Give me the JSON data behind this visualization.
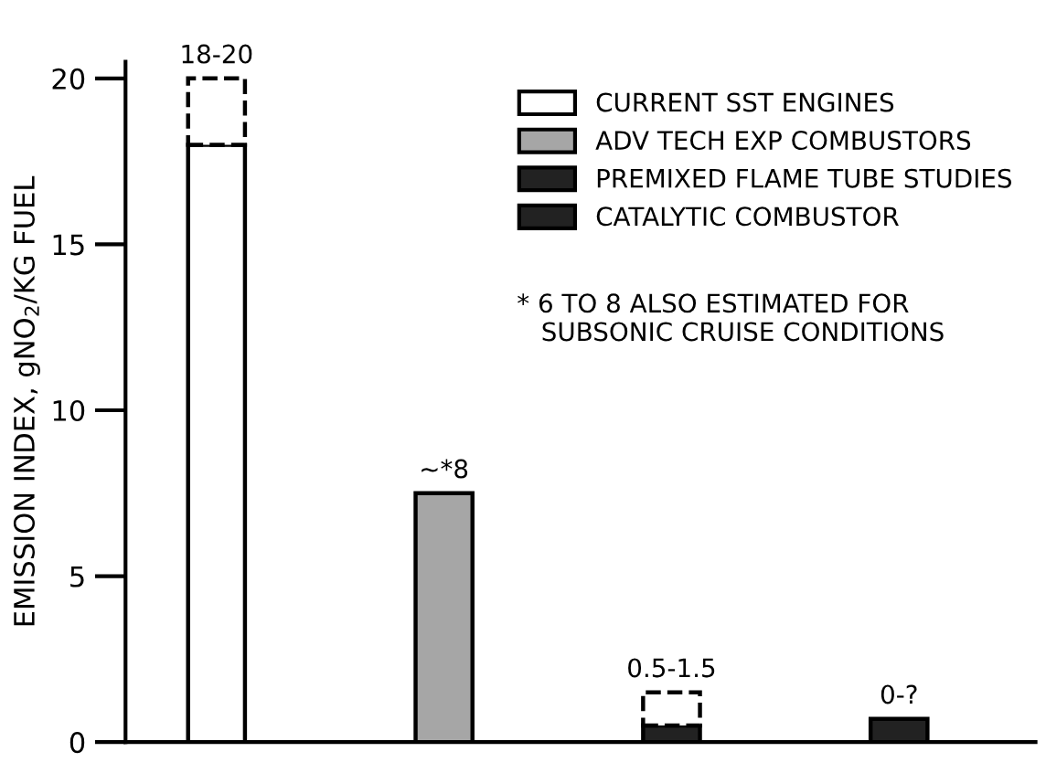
{
  "chart_data": {
    "type": "bar",
    "stacked": true,
    "categories": [
      null,
      null,
      null,
      null
    ],
    "ylabel": "EMISSION INDEX, gNO$_{2}$/KG FUEL",
    "series": [
      {
        "name": "CURRENT SST ENGINES",
        "color": "#ffffff",
        "values": [
          18,
          null,
          null,
          null
        ]
      },
      {
        "name": "ADV TECH EXP COMBUSTORS",
        "color": "#a6a6a6",
        "values": [
          null,
          7.5,
          null,
          null
        ]
      },
      {
        "name": "PREMIXED FLAME TUBE STUDIES",
        "color": "#222222",
        "values": [
          null,
          null,
          0.5,
          null
        ]
      },
      {
        "name": "CATALYTIC COMBUSTOR",
        "color": "#222222",
        "values": [
          null,
          null,
          null,
          0.7
        ]
      },
      {
        "color": "#ffffff",
        "line_style": "dashed",
        "values": [
          2,
          null,
          1.0,
          null
        ]
      }
    ],
    "value_labels": [
      "18-20",
      "~*8",
      "0.5-1.5",
      "0-?"
    ],
    "ylim": [
      0,
      20.5
    ],
    "yticks": [
      0,
      5,
      10,
      15,
      20
    ],
    "grid": false,
    "legend": "top right",
    "annotations": [
      "* 6 TO 8 ALSO ESTIMATED FOR\n   SUBSONIC CRUISE CONDITIONS"
    ]
  }
}
